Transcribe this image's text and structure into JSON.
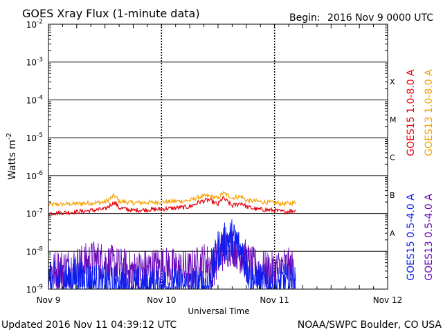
{
  "header": {
    "title": "GOES Xray Flux (1-minute data)",
    "begin_label": "Begin:",
    "begin_value": "2016 Nov 9 0000 UTC"
  },
  "footer": {
    "updated": "Updated 2016 Nov 11 04:39:12 UTC",
    "credit": "NOAA/SWPC Boulder, CO USA"
  },
  "chart_data": {
    "type": "line",
    "title": "GOES Xray Flux (1-minute data)",
    "xlabel": "Universal Time",
    "ylabel": "Watts m",
    "ylabel_sup": "-2",
    "log_scale_y": true,
    "ylim": [
      1e-09,
      0.01
    ],
    "xlim": [
      "2016-11-09 00:00",
      "2016-11-12 00:00"
    ],
    "x_ticks": [
      "Nov 9",
      "Nov 10",
      "Nov 11",
      "Nov 12"
    ],
    "y_ticks": [
      {
        "mantissa": "10",
        "exp": "-9"
      },
      {
        "mantissa": "10",
        "exp": "-8"
      },
      {
        "mantissa": "10",
        "exp": "-7"
      },
      {
        "mantissa": "10",
        "exp": "-6"
      },
      {
        "mantissa": "10",
        "exp": "-5"
      },
      {
        "mantissa": "10",
        "exp": "-4"
      },
      {
        "mantissa": "10",
        "exp": "-3"
      },
      {
        "mantissa": "10",
        "exp": "-2"
      }
    ],
    "flare_classes": [
      "A",
      "B",
      "C",
      "M",
      "X"
    ],
    "legend_top": [
      {
        "name": "GOES15 1.0-8.0 A",
        "color": "#e8000b"
      },
      {
        "name": "GOES13 1.0-8.0 A",
        "color": "#f5a000"
      }
    ],
    "legend_bottom": [
      {
        "name": "GOES15 0.5-4.0 A",
        "color": "#0a1ef0"
      },
      {
        "name": "GOES13 0.5-4.0 A",
        "color": "#6a0ab8"
      }
    ],
    "series": [
      {
        "name": "GOES13 1.0-8.0 A",
        "color": "#f5a000",
        "x": [
          "2016-11-09 00:00",
          "2016-11-09 06:00",
          "2016-11-09 12:00",
          "2016-11-09 14:00",
          "2016-11-09 15:00",
          "2016-11-09 18:00",
          "2016-11-10 00:00",
          "2016-11-10 06:00",
          "2016-11-10 08:00",
          "2016-11-10 10:00",
          "2016-11-10 12:00",
          "2016-11-10 13:00",
          "2016-11-10 15:00",
          "2016-11-10 17:00",
          "2016-11-10 18:00",
          "2016-11-10 20:00",
          "2016-11-11 00:00",
          "2016-11-11 02:00",
          "2016-11-11 04:30"
        ],
        "values": [
          1.7e-07,
          1.8e-07,
          2e-07,
          3e-07,
          2.1e-07,
          1.9e-07,
          2e-07,
          2.2e-07,
          2.7e-07,
          2.9e-07,
          2.5e-07,
          3.5e-07,
          2.6e-07,
          2.8e-07,
          2.2e-07,
          2.1e-07,
          1.9e-07,
          1.8e-07,
          1.9e-07
        ]
      },
      {
        "name": "GOES15 1.0-8.0 A",
        "color": "#e8000b",
        "x": [
          "2016-11-09 00:00",
          "2016-11-09 06:00",
          "2016-11-09 12:00",
          "2016-11-09 14:00",
          "2016-11-09 15:00",
          "2016-11-09 18:00",
          "2016-11-10 00:00",
          "2016-11-10 06:00",
          "2016-11-10 08:00",
          "2016-11-10 10:00",
          "2016-11-10 12:00",
          "2016-11-10 13:00",
          "2016-11-10 15:00",
          "2016-11-10 17:00",
          "2016-11-10 18:00",
          "2016-11-10 20:00",
          "2016-11-11 00:00",
          "2016-11-11 02:00",
          "2016-11-11 04:30"
        ],
        "values": [
          1e-07,
          1.1e-07,
          1.3e-07,
          2e-07,
          1.4e-07,
          1.2e-07,
          1.3e-07,
          1.5e-07,
          2e-07,
          2.3e-07,
          1.7e-07,
          2.6e-07,
          1.6e-07,
          1.9e-07,
          1.5e-07,
          1.3e-07,
          1.2e-07,
          1.1e-07,
          1.2e-07
        ]
      },
      {
        "name": "GOES13 0.5-4.0 A",
        "color": "#6a0ab8",
        "x": [
          "2016-11-09 00:00",
          "2016-11-09 06:00",
          "2016-11-09 10:00",
          "2016-11-09 14:00",
          "2016-11-09 18:00",
          "2016-11-10 00:00",
          "2016-11-10 06:00",
          "2016-11-10 09:00",
          "2016-11-10 11:00",
          "2016-11-10 13:00",
          "2016-11-10 15:00",
          "2016-11-10 17:00",
          "2016-11-10 19:00",
          "2016-11-10 22:00",
          "2016-11-11 00:00",
          "2016-11-11 02:00",
          "2016-11-11 04:30"
        ],
        "values": [
          3e-09,
          4e-09,
          6e-09,
          4e-09,
          3e-09,
          4e-09,
          3e-09,
          5e-09,
          4e-09,
          1e-08,
          1.5e-08,
          8e-09,
          4e-09,
          3e-09,
          3e-09,
          4e-09,
          3e-09
        ]
      },
      {
        "name": "GOES15 0.5-4.0 A",
        "color": "#0a1ef0",
        "x": [
          "2016-11-09 00:00",
          "2016-11-09 06:00",
          "2016-11-09 12:00",
          "2016-11-09 18:00",
          "2016-11-10 00:00",
          "2016-11-10 06:00",
          "2016-11-10 10:00",
          "2016-11-10 12:00",
          "2016-11-10 14:00",
          "2016-11-10 15:00",
          "2016-11-10 17:00",
          "2016-11-10 19:00",
          "2016-11-10 22:00",
          "2016-11-11 00:00",
          "2016-11-11 02:00",
          "2016-11-11 04:30"
        ],
        "values": [
          1.5e-09,
          2e-09,
          1.2e-09,
          1.1e-09,
          1.2e-09,
          1.1e-09,
          1.2e-09,
          1.1e-08,
          2e-08,
          2.2e-08,
          1e-08,
          2e-09,
          1.2e-09,
          1.1e-09,
          1.5e-09,
          1.2e-09
        ]
      }
    ]
  }
}
